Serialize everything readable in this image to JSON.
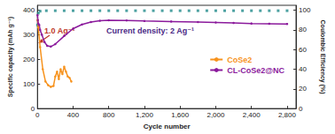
{
  "chart_data": {
    "type": "line",
    "x_label": "Cycle number",
    "y_label": "Specific capacity (mAh g⁻¹)",
    "y2_label": "Coulombic Efficiency (%)",
    "annotations": [
      "1.0 Ag⁻¹",
      "Current density: 2 Ag⁻¹"
    ],
    "xlim": [
      0,
      2900
    ],
    "xticks": [
      0,
      400,
      800,
      1200,
      1600,
      2000,
      2400,
      2800
    ],
    "ylim": [
      0,
      420
    ],
    "yticks": [
      0,
      100,
      200,
      300,
      400
    ],
    "y2lim": [
      0,
      105
    ],
    "y2ticks": [
      0,
      20,
      40,
      60,
      80,
      100
    ],
    "legend": "right",
    "series": [
      {
        "name": "CoSe2",
        "type": "line",
        "color": "#f7931e",
        "marker": "circle",
        "line_style": "solid",
        "x": [
          1,
          10,
          30,
          60,
          90,
          120,
          150,
          180,
          200,
          220,
          240,
          260,
          280,
          300,
          320,
          340,
          360,
          380
        ],
        "values": [
          360,
          330,
          250,
          160,
          110,
          95,
          88,
          92,
          130,
          150,
          120,
          160,
          140,
          170,
          150,
          130,
          125,
          110
        ]
      },
      {
        "name": "CL-CoSe2@NC",
        "type": "line",
        "color": "#8b1a9c",
        "marker": "circle",
        "line_style": "solid",
        "x": [
          1,
          5,
          10,
          20,
          30,
          50,
          80,
          110,
          150,
          200,
          300,
          400,
          500,
          600,
          700,
          800,
          1000,
          1200,
          1500,
          1800,
          2000,
          2200,
          2400,
          2600,
          2800
        ],
        "values": [
          380,
          360,
          345,
          340,
          320,
          300,
          270,
          255,
          252,
          262,
          295,
          325,
          342,
          352,
          357,
          359,
          358,
          356,
          354,
          352,
          350,
          348,
          346,
          345,
          344
        ]
      },
      {
        "type": "scatter",
        "color": "#1f8a8a",
        "marker": "square",
        "axis": "y2",
        "x": [
          1,
          10,
          30,
          100,
          200,
          300,
          400,
          500,
          600,
          700,
          800,
          900,
          1000,
          1100,
          1200,
          1300,
          1400,
          1500,
          1600,
          1700,
          1800,
          1900,
          2000,
          2100,
          2200,
          2300,
          2400,
          2500,
          2600,
          2700,
          2800
        ],
        "values": [
          85,
          97,
          99,
          99.5,
          99.5,
          99.5,
          99.5,
          99.5,
          99.5,
          99.5,
          99.5,
          99.5,
          99.5,
          99.5,
          99.5,
          99.5,
          99.5,
          99.5,
          99.5,
          99.5,
          99.5,
          99.5,
          99.5,
          99.5,
          99.5,
          99.5,
          99.5,
          99.5,
          99.5,
          99.5,
          99.5
        ]
      }
    ]
  }
}
